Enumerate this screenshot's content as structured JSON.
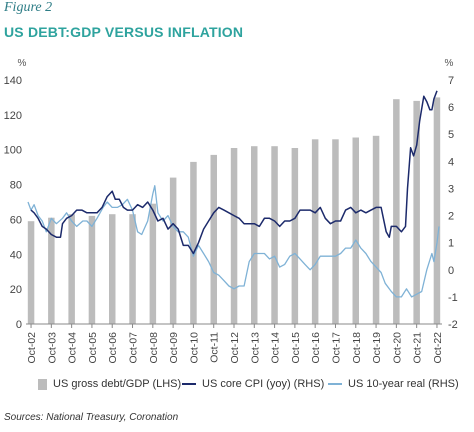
{
  "figure_label": "Figure 2",
  "title": "US DEBT:GDP VERSUS INFLATION",
  "source": "Sources: National Treasury, Coronation",
  "chart_data": {
    "type": "bar+line",
    "left_axis": {
      "unit": "%",
      "min": 0,
      "max": 140,
      "ticks": [
        0,
        20,
        40,
        60,
        80,
        100,
        120,
        140
      ]
    },
    "right_axis": {
      "unit": "%",
      "min": -2,
      "max": 7,
      "ticks": [
        -2,
        -1,
        0,
        1,
        2,
        3,
        4,
        5,
        6,
        7
      ]
    },
    "x_ticks": [
      "Oct-02",
      "Oct-03",
      "Oct-04",
      "Oct-05",
      "Oct-06",
      "Oct-07",
      "Oct-08",
      "Oct-09",
      "Oct-10",
      "Oct-11",
      "Oct-12",
      "Oct-13",
      "Oct-14",
      "Oct-15",
      "Oct-16",
      "Oct-17",
      "Oct-18",
      "Oct-19",
      "Oct-20",
      "Oct-21",
      "Oct-22"
    ],
    "x_range": [
      2002.6,
      2022.9
    ],
    "series": [
      {
        "name": "US gross debt/GDP (LHS)",
        "type": "bar",
        "axis": "left",
        "color": "#bcbcbc",
        "x": [
          2002.75,
          2003.75,
          2004.75,
          2005.75,
          2006.75,
          2007.75,
          2008.75,
          2009.75,
          2010.75,
          2011.75,
          2012.75,
          2013.75,
          2014.75,
          2015.75,
          2016.75,
          2017.75,
          2018.75,
          2019.75,
          2020.75,
          2021.75,
          2022.75
        ],
        "values": [
          59,
          61,
          63,
          62,
          63,
          63,
          69,
          84,
          93,
          97,
          101,
          102,
          102,
          101,
          106,
          106,
          107,
          108,
          129,
          128,
          130
        ]
      },
      {
        "name": "US core CPI (yoy) (RHS)",
        "type": "line",
        "axis": "right",
        "color": "#1c2a6b",
        "points": [
          [
            2002.75,
            2.2
          ],
          [
            2002.9,
            2.1
          ],
          [
            2003.1,
            1.9
          ],
          [
            2003.3,
            1.6
          ],
          [
            2003.5,
            1.5
          ],
          [
            2003.75,
            1.3
          ],
          [
            2004.0,
            1.2
          ],
          [
            2004.2,
            1.2
          ],
          [
            2004.3,
            1.7
          ],
          [
            2004.5,
            1.9
          ],
          [
            2004.75,
            2.0
          ],
          [
            2005.0,
            2.2
          ],
          [
            2005.25,
            2.2
          ],
          [
            2005.5,
            2.1
          ],
          [
            2005.75,
            2.1
          ],
          [
            2006.0,
            2.1
          ],
          [
            2006.25,
            2.3
          ],
          [
            2006.5,
            2.7
          ],
          [
            2006.75,
            2.9
          ],
          [
            2006.9,
            2.6
          ],
          [
            2007.1,
            2.6
          ],
          [
            2007.3,
            2.3
          ],
          [
            2007.5,
            2.2
          ],
          [
            2007.75,
            2.2
          ],
          [
            2008.0,
            2.4
          ],
          [
            2008.25,
            2.3
          ],
          [
            2008.5,
            2.5
          ],
          [
            2008.75,
            2.2
          ],
          [
            2009.0,
            1.8
          ],
          [
            2009.25,
            1.9
          ],
          [
            2009.5,
            1.5
          ],
          [
            2009.75,
            1.7
          ],
          [
            2010.0,
            1.5
          ],
          [
            2010.25,
            0.9
          ],
          [
            2010.5,
            0.9
          ],
          [
            2010.75,
            0.6
          ],
          [
            2011.0,
            1.0
          ],
          [
            2011.25,
            1.5
          ],
          [
            2011.5,
            1.8
          ],
          [
            2011.75,
            2.1
          ],
          [
            2012.0,
            2.3
          ],
          [
            2012.25,
            2.2
          ],
          [
            2012.5,
            2.1
          ],
          [
            2012.75,
            2.0
          ],
          [
            2013.0,
            1.9
          ],
          [
            2013.25,
            1.7
          ],
          [
            2013.5,
            1.7
          ],
          [
            2013.75,
            1.7
          ],
          [
            2014.0,
            1.6
          ],
          [
            2014.25,
            1.9
          ],
          [
            2014.5,
            1.9
          ],
          [
            2014.75,
            1.8
          ],
          [
            2015.0,
            1.6
          ],
          [
            2015.25,
            1.8
          ],
          [
            2015.5,
            1.8
          ],
          [
            2015.75,
            1.9
          ],
          [
            2016.0,
            2.2
          ],
          [
            2016.25,
            2.2
          ],
          [
            2016.5,
            2.2
          ],
          [
            2016.75,
            2.1
          ],
          [
            2017.0,
            2.3
          ],
          [
            2017.25,
            1.9
          ],
          [
            2017.5,
            1.7
          ],
          [
            2017.75,
            1.8
          ],
          [
            2018.0,
            1.8
          ],
          [
            2018.25,
            2.2
          ],
          [
            2018.5,
            2.3
          ],
          [
            2018.75,
            2.1
          ],
          [
            2019.0,
            2.2
          ],
          [
            2019.25,
            2.1
          ],
          [
            2019.5,
            2.2
          ],
          [
            2019.75,
            2.3
          ],
          [
            2020.0,
            2.3
          ],
          [
            2020.25,
            1.4
          ],
          [
            2020.4,
            1.2
          ],
          [
            2020.5,
            1.6
          ],
          [
            2020.75,
            1.6
          ],
          [
            2021.0,
            1.4
          ],
          [
            2021.2,
            1.6
          ],
          [
            2021.3,
            3.0
          ],
          [
            2021.45,
            4.5
          ],
          [
            2021.6,
            4.2
          ],
          [
            2021.75,
            4.6
          ],
          [
            2021.9,
            5.5
          ],
          [
            2022.1,
            6.4
          ],
          [
            2022.25,
            6.2
          ],
          [
            2022.4,
            5.9
          ],
          [
            2022.5,
            5.9
          ],
          [
            2022.6,
            6.3
          ],
          [
            2022.75,
            6.6
          ]
        ]
      },
      {
        "name": "US 10-year real (RHS)",
        "type": "line",
        "axis": "right",
        "color": "#7fb2d6",
        "points": [
          [
            2002.6,
            2.5
          ],
          [
            2002.75,
            2.2
          ],
          [
            2002.9,
            2.4
          ],
          [
            2003.1,
            2.0
          ],
          [
            2003.3,
            1.8
          ],
          [
            2003.5,
            1.4
          ],
          [
            2003.75,
            1.9
          ],
          [
            2004.0,
            1.7
          ],
          [
            2004.3,
            1.9
          ],
          [
            2004.5,
            2.1
          ],
          [
            2004.75,
            1.8
          ],
          [
            2005.0,
            1.6
          ],
          [
            2005.3,
            1.8
          ],
          [
            2005.5,
            1.8
          ],
          [
            2005.75,
            1.6
          ],
          [
            2006.0,
            1.9
          ],
          [
            2006.3,
            2.3
          ],
          [
            2006.5,
            2.5
          ],
          [
            2006.75,
            2.3
          ],
          [
            2007.0,
            2.3
          ],
          [
            2007.25,
            2.4
          ],
          [
            2007.5,
            2.6
          ],
          [
            2007.75,
            2.2
          ],
          [
            2008.0,
            1.4
          ],
          [
            2008.2,
            1.3
          ],
          [
            2008.5,
            1.8
          ],
          [
            2008.75,
            2.8
          ],
          [
            2008.85,
            3.1
          ],
          [
            2009.0,
            2.1
          ],
          [
            2009.25,
            1.8
          ],
          [
            2009.5,
            2.0
          ],
          [
            2009.75,
            1.6
          ],
          [
            2010.0,
            1.4
          ],
          [
            2010.25,
            1.4
          ],
          [
            2010.5,
            1.2
          ],
          [
            2010.6,
            0.9
          ],
          [
            2010.75,
            0.5
          ],
          [
            2011.0,
            0.9
          ],
          [
            2011.25,
            0.6
          ],
          [
            2011.5,
            0.3
          ],
          [
            2011.75,
            -0.1
          ],
          [
            2012.0,
            -0.2
          ],
          [
            2012.25,
            -0.4
          ],
          [
            2012.5,
            -0.6
          ],
          [
            2012.75,
            -0.7
          ],
          [
            2013.0,
            -0.6
          ],
          [
            2013.25,
            -0.6
          ],
          [
            2013.5,
            0.3
          ],
          [
            2013.75,
            0.6
          ],
          [
            2014.0,
            0.6
          ],
          [
            2014.25,
            0.6
          ],
          [
            2014.5,
            0.4
          ],
          [
            2014.75,
            0.5
          ],
          [
            2015.0,
            0.1
          ],
          [
            2015.25,
            0.2
          ],
          [
            2015.5,
            0.5
          ],
          [
            2015.75,
            0.6
          ],
          [
            2016.0,
            0.4
          ],
          [
            2016.25,
            0.2
          ],
          [
            2016.5,
            0.0
          ],
          [
            2016.75,
            0.2
          ],
          [
            2017.0,
            0.5
          ],
          [
            2017.25,
            0.5
          ],
          [
            2017.5,
            0.5
          ],
          [
            2017.75,
            0.5
          ],
          [
            2018.0,
            0.6
          ],
          [
            2018.25,
            0.8
          ],
          [
            2018.5,
            0.8
          ],
          [
            2018.75,
            1.1
          ],
          [
            2019.0,
            0.8
          ],
          [
            2019.25,
            0.6
          ],
          [
            2019.5,
            0.3
          ],
          [
            2019.75,
            0.1
          ],
          [
            2020.0,
            -0.1
          ],
          [
            2020.2,
            -0.5
          ],
          [
            2020.5,
            -0.8
          ],
          [
            2020.75,
            -1.0
          ],
          [
            2021.0,
            -1.0
          ],
          [
            2021.25,
            -0.7
          ],
          [
            2021.5,
            -1.0
          ],
          [
            2021.75,
            -0.9
          ],
          [
            2022.0,
            -0.8
          ],
          [
            2022.25,
            0.0
          ],
          [
            2022.5,
            0.6
          ],
          [
            2022.6,
            0.3
          ],
          [
            2022.75,
            1.0
          ],
          [
            2022.85,
            1.6
          ]
        ]
      }
    ]
  }
}
